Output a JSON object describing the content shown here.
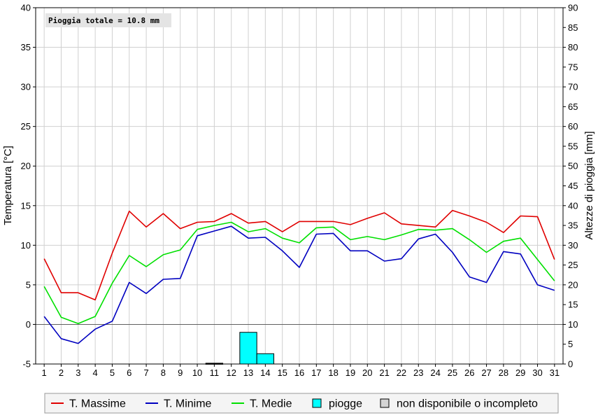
{
  "chart_data": {
    "type": "line",
    "x": [
      1,
      2,
      3,
      4,
      5,
      6,
      7,
      8,
      9,
      10,
      11,
      12,
      13,
      14,
      15,
      16,
      17,
      18,
      19,
      20,
      21,
      22,
      23,
      24,
      25,
      26,
      27,
      28,
      29,
      30,
      31
    ],
    "x_ticks": [
      "1",
      "2",
      "3",
      "4",
      "5",
      "6",
      "7",
      "8",
      "9",
      "10",
      "11",
      "12",
      "13",
      "14",
      "15",
      "16",
      "17",
      "18",
      "19",
      "20",
      "21",
      "22",
      "23",
      "24",
      "25",
      "26",
      "27",
      "28",
      "29",
      "30",
      "31"
    ],
    "ylabel": "Temperatura [°C]",
    "ylabel_right": "Altezze di pioggia [mm]",
    "ylim": [
      -5,
      40
    ],
    "ylim_right": [
      0,
      90
    ],
    "y_ticks": [
      "-5",
      "0",
      "5",
      "10",
      "15",
      "20",
      "25",
      "30",
      "35",
      "40"
    ],
    "y_ticks_right": [
      "0",
      "5",
      "10",
      "15",
      "20",
      "25",
      "30",
      "35",
      "40",
      "45",
      "50",
      "55",
      "60",
      "65",
      "70",
      "75",
      "80",
      "85",
      "90"
    ],
    "grid": true,
    "annotation": "Pioggia totale = 10.8 mm",
    "series": [
      {
        "name": "T. Massime",
        "color": "#e00000",
        "values": [
          8.3,
          4.0,
          4.0,
          3.1,
          9.0,
          14.3,
          12.3,
          14.0,
          12.1,
          12.9,
          13.0,
          14.0,
          12.8,
          13.0,
          11.7,
          13.0,
          13.0,
          13.0,
          12.6,
          13.4,
          14.1,
          12.7,
          12.5,
          12.3,
          14.4,
          13.7,
          12.9,
          11.6,
          13.7,
          13.6,
          8.2
        ]
      },
      {
        "name": "T. Minime",
        "color": "#0000c0",
        "values": [
          1.0,
          -1.8,
          -2.4,
          -0.6,
          0.4,
          5.3,
          3.9,
          5.7,
          5.8,
          11.2,
          11.8,
          12.4,
          10.9,
          11.0,
          9.3,
          7.2,
          11.4,
          11.5,
          9.3,
          9.3,
          8.0,
          8.3,
          10.8,
          11.4,
          9.1,
          6.0,
          5.3,
          9.2,
          8.9,
          5.0,
          4.3
        ]
      },
      {
        "name": "T. Medie",
        "color": "#00e000",
        "values": [
          4.8,
          0.9,
          0.1,
          1.0,
          5.2,
          8.7,
          7.3,
          8.8,
          9.4,
          12.0,
          12.5,
          12.9,
          11.7,
          12.1,
          10.9,
          10.3,
          12.2,
          12.3,
          10.7,
          11.1,
          10.7,
          11.3,
          12.0,
          11.9,
          12.1,
          10.7,
          9.1,
          10.5,
          10.9,
          8.2,
          5.5
        ]
      }
    ],
    "bars": {
      "name": "piogge",
      "color": "#00ffff",
      "values": [
        0,
        0,
        0,
        0,
        0,
        0,
        0,
        0,
        0,
        0,
        0.2,
        0,
        8.0,
        2.6,
        0,
        0,
        0,
        0,
        0,
        0,
        0,
        0,
        0,
        0,
        0,
        0,
        0,
        0,
        0,
        0,
        0
      ]
    },
    "legend": {
      "position": "bottom",
      "items": [
        {
          "label": "T. Massime",
          "symbol": "line",
          "color": "#e00000"
        },
        {
          "label": "T. Minime",
          "symbol": "line",
          "color": "#0000c0"
        },
        {
          "label": "T. Medie",
          "symbol": "line",
          "color": "#00e000"
        },
        {
          "label": "piogge",
          "symbol": "box",
          "color": "#00ffff"
        },
        {
          "label": "non disponibile o incompleto",
          "symbol": "box",
          "color": "#d4d4d4"
        }
      ]
    }
  }
}
